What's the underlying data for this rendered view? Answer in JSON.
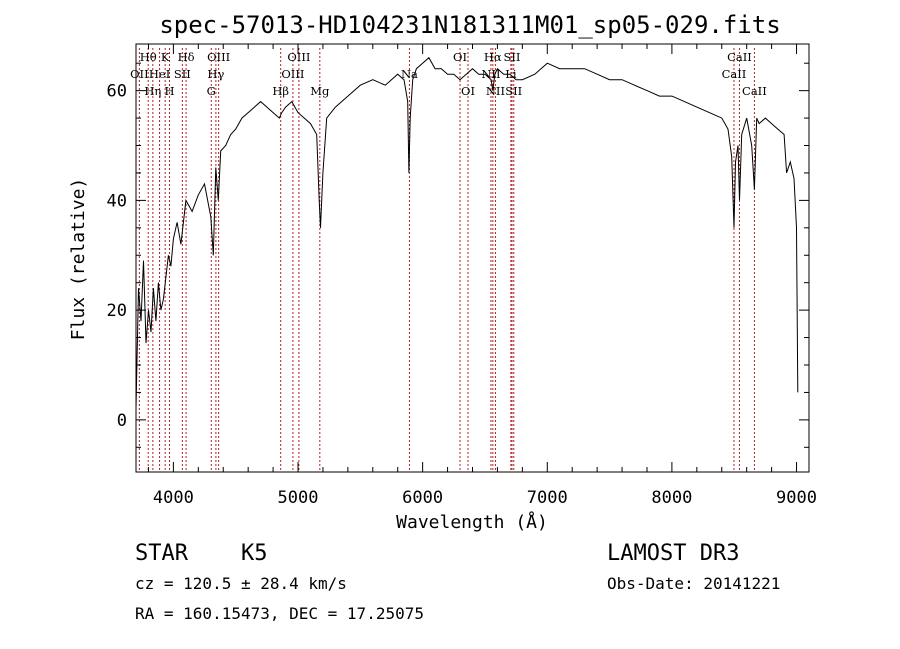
{
  "chart_data": {
    "type": "line",
    "title": "spec-57013-HD104231N181311M01_sp05-029.fits",
    "xlabel": "Wavelength (Å)",
    "ylabel": "Flux (relative)",
    "xlim": [
      3700,
      9100
    ],
    "ylim": [
      -9.5,
      68.5
    ],
    "xticks": [
      4000,
      5000,
      6000,
      7000,
      8000,
      9000
    ],
    "yticks": [
      0,
      20,
      40,
      60
    ],
    "grid": false,
    "series": [
      {
        "name": "flux",
        "x": [
          3700,
          3720,
          3740,
          3760,
          3780,
          3800,
          3820,
          3840,
          3860,
          3880,
          3900,
          3920,
          3940,
          3960,
          3980,
          4000,
          4030,
          4060,
          4100,
          4150,
          4200,
          4250,
          4300,
          4320,
          4340,
          4360,
          4380,
          4420,
          4460,
          4500,
          4550,
          4600,
          4650,
          4700,
          4750,
          4800,
          4850,
          4870,
          4900,
          4950,
          5000,
          5050,
          5100,
          5150,
          5170,
          5180,
          5200,
          5230,
          5300,
          5400,
          5500,
          5600,
          5700,
          5800,
          5850,
          5880,
          5890,
          5900,
          5920,
          5950,
          6000,
          6050,
          6100,
          6150,
          6200,
          6250,
          6300,
          6350,
          6400,
          6450,
          6500,
          6550,
          6563,
          6580,
          6600,
          6650,
          6700,
          6750,
          6800,
          6900,
          7000,
          7100,
          7200,
          7300,
          7400,
          7500,
          7600,
          7700,
          7800,
          7900,
          8000,
          8100,
          8200,
          8300,
          8400,
          8450,
          8480,
          8498,
          8510,
          8530,
          8542,
          8560,
          8600,
          8640,
          8662,
          8680,
          8700,
          8750,
          8800,
          8850,
          8900,
          8920,
          8950,
          8980,
          9000,
          9010
        ],
        "values": [
          2,
          24,
          18,
          29,
          14,
          20,
          16,
          24,
          18,
          25,
          20,
          22,
          26,
          30,
          28,
          33,
          36,
          32,
          40,
          38,
          41,
          43,
          37,
          30,
          46,
          40,
          49,
          50,
          52,
          53,
          55,
          56,
          57,
          58,
          57,
          56,
          55,
          56,
          57,
          58,
          56,
          55,
          54,
          52,
          40,
          35,
          45,
          55,
          57,
          59,
          61,
          62,
          61,
          63,
          62,
          58,
          45,
          55,
          62,
          64,
          65,
          66,
          64,
          64,
          63,
          63,
          62,
          63,
          64,
          63,
          63,
          62,
          60,
          63,
          64,
          63,
          63,
          62,
          62,
          63,
          65,
          64,
          64,
          64,
          63,
          62,
          62,
          61,
          60,
          59,
          59,
          58,
          57,
          56,
          55,
          53,
          48,
          35,
          47,
          50,
          40,
          52,
          55,
          50,
          42,
          55,
          54,
          55,
          54,
          53,
          52,
          45,
          47,
          44,
          35,
          5
        ],
        "color": "#000000"
      }
    ],
    "annotations": {
      "line_color": "#b22222",
      "lines": [
        {
          "label": "OII",
          "wavelength": 3727,
          "row": 2
        },
        {
          "label": "Hθ",
          "wavelength": 3798,
          "row": 1
        },
        {
          "label": "Hη",
          "wavelength": 3835,
          "row": 3
        },
        {
          "label": "HeI",
          "wavelength": 3889,
          "row": 2
        },
        {
          "label": "K",
          "wavelength": 3934,
          "row": 1
        },
        {
          "label": "H",
          "wavelength": 3969,
          "row": 3
        },
        {
          "label": "SII",
          "wavelength": 4072,
          "row": 2
        },
        {
          "label": "Hδ",
          "wavelength": 4102,
          "row": 1
        },
        {
          "label": "G",
          "wavelength": 4304,
          "row": 3
        },
        {
          "label": "Hγ",
          "wavelength": 4341,
          "row": 2
        },
        {
          "label": "OIII",
          "wavelength": 4363,
          "row": 1
        },
        {
          "label": "Hβ",
          "wavelength": 4861,
          "row": 3
        },
        {
          "label": "OIII",
          "wavelength": 4959,
          "row": 2
        },
        {
          "label": "OIII",
          "wavelength": 5007,
          "row": 1
        },
        {
          "label": "Mg",
          "wavelength": 5175,
          "row": 3
        },
        {
          "label": "Na",
          "wavelength": 5894,
          "row": 2
        },
        {
          "label": "OI",
          "wavelength": 6300,
          "row": 1
        },
        {
          "label": "OI",
          "wavelength": 6364,
          "row": 3
        },
        {
          "label": "Hα",
          "wavelength": 6563,
          "row": 1
        },
        {
          "label": "NII",
          "wavelength": 6548,
          "row": 2
        },
        {
          "label": "NII",
          "wavelength": 6584,
          "row": 3
        },
        {
          "label": "SII",
          "wavelength": 6717,
          "row": 1
        },
        {
          "label": "Li",
          "wavelength": 6708,
          "row": 2
        },
        {
          "label": "SII",
          "wavelength": 6731,
          "row": 3
        },
        {
          "label": "CaII",
          "wavelength": 8498,
          "row": 2
        },
        {
          "label": "CaII",
          "wavelength": 8542,
          "row": 1
        },
        {
          "label": "CaII",
          "wavelength": 8662,
          "row": 3
        }
      ]
    }
  },
  "info": {
    "class": "STAR",
    "subclass": "K5",
    "survey": "LAMOST DR3",
    "cz": "cz = 120.5 ± 28.4 km/s",
    "obs_date": "Obs-Date: 20141221",
    "radec": "RA = 160.15473, DEC =  17.25075"
  }
}
